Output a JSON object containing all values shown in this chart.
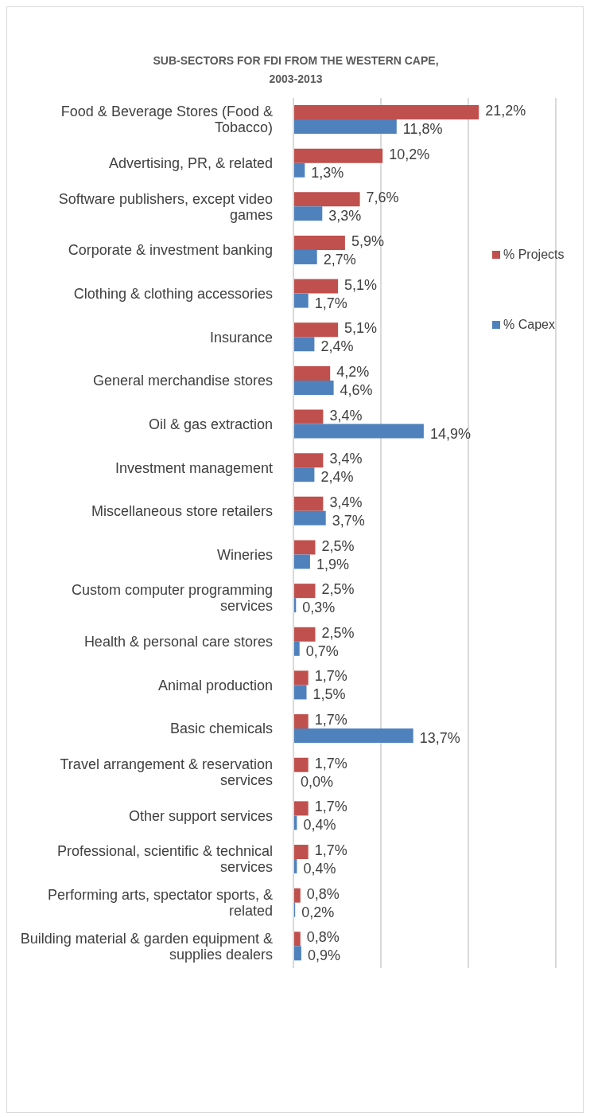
{
  "chart_data": {
    "type": "bar",
    "orientation": "horizontal",
    "title": "SUB-SECTORS FOR FDI FROM THE WESTERN CAPE, 2003-2013",
    "categories": [
      "Food & Beverage Stores (Food & Tobacco)",
      "Advertising, PR, & related",
      "Software publishers, except video games",
      "Corporate & investment banking",
      "Clothing & clothing accessories",
      "Insurance",
      "General merchandise stores",
      "Oil & gas extraction",
      "Investment management",
      "Miscellaneous store retailers",
      "Wineries",
      "Custom computer programming services",
      "Health & personal care stores",
      "Animal production",
      "Basic chemicals",
      "Travel arrangement & reservation services",
      "Other support services",
      "Professional, scientific & technical services",
      "Performing arts, spectator sports, & related",
      "Building material & garden equipment & supplies dealers"
    ],
    "series": [
      {
        "name": "% Projects",
        "color": "#c0504d",
        "values": [
          21.2,
          10.2,
          7.6,
          5.9,
          5.1,
          5.1,
          4.2,
          3.4,
          3.4,
          3.4,
          2.5,
          2.5,
          2.5,
          1.7,
          1.7,
          1.7,
          1.7,
          1.7,
          0.8,
          0.8
        ],
        "value_labels": [
          "21,2%",
          "10,2%",
          "7,6%",
          "5,9%",
          "5,1%",
          "5,1%",
          "4,2%",
          "3,4%",
          "3,4%",
          "3,4%",
          "2,5%",
          "2,5%",
          "2,5%",
          "1,7%",
          "1,7%",
          "1,7%",
          "1,7%",
          "1,7%",
          "0,8%",
          "0,8%"
        ]
      },
      {
        "name": "% Capex",
        "color": "#4f81bd",
        "values": [
          11.8,
          1.3,
          3.3,
          2.7,
          1.7,
          2.4,
          4.6,
          14.9,
          2.4,
          3.7,
          1.9,
          0.3,
          0.7,
          1.5,
          13.7,
          0.0,
          0.4,
          0.4,
          0.2,
          0.9
        ],
        "value_labels": [
          "11,8%",
          "1,3%",
          "3,3%",
          "2,7%",
          "1,7%",
          "2,4%",
          "4,6%",
          "14,9%",
          "2,4%",
          "3,7%",
          "1,9%",
          "0,3%",
          "0,7%",
          "1,5%",
          "13,7%",
          "0,0%",
          "0,4%",
          "0,4%",
          "0,2%",
          "0,9%"
        ]
      }
    ],
    "xlim": [
      0,
      30
    ],
    "xticks": [
      {
        "value": 0,
        "label": null
      },
      {
        "value": 10,
        "label": null
      },
      {
        "value": 20,
        "label": null
      },
      {
        "value": 30,
        "label": null
      }
    ],
    "tick_labels": "y",
    "grid": "x",
    "legend": "right"
  }
}
